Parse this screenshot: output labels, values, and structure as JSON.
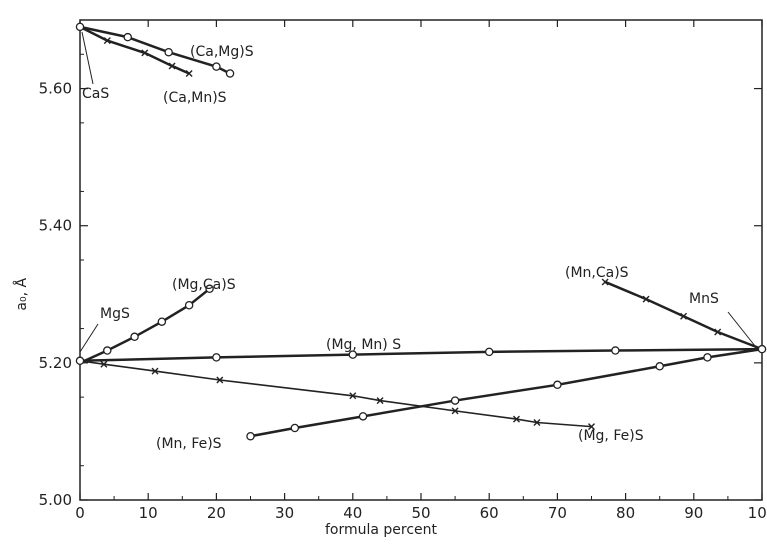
{
  "chart_data": {
    "type": "line",
    "title": "",
    "xlabel": "formula percent",
    "ylabel": "a₀, Å",
    "xlim": [
      0,
      100
    ],
    "ylim": [
      5.0,
      5.7
    ],
    "xticks": [
      "0",
      "10",
      "20",
      "30",
      "40",
      "50",
      "60",
      "70",
      "80",
      "90",
      "100"
    ],
    "yticks": [
      "5.00",
      "5.20",
      "5.40",
      "5.60"
    ],
    "ytick_values": [
      5.0,
      5.2,
      5.4,
      5.6
    ],
    "grid": false,
    "series": [
      {
        "name": "(Ca,Mg)S",
        "marker": "circle",
        "width": 2.5,
        "x": [
          0,
          7,
          13,
          20,
          22
        ],
        "y": [
          5.69,
          5.675,
          5.653,
          5.632,
          5.622
        ]
      },
      {
        "name": "(Ca,Mn)S",
        "marker": "cross",
        "width": 2.5,
        "x": [
          0,
          4,
          9.5,
          13.5,
          16
        ],
        "y": [
          5.69,
          5.67,
          5.652,
          5.633,
          5.622
        ]
      },
      {
        "name": "(Mg,Ca)S",
        "marker": "circle",
        "width": 2.5,
        "x": [
          0,
          4,
          8,
          12,
          16,
          19
        ],
        "y": [
          5.2,
          5.218,
          5.238,
          5.26,
          5.284,
          5.308
        ]
      },
      {
        "name": "(Mg, Mn) S",
        "marker": "circle",
        "width": 2.5,
        "x": [
          0,
          20,
          40,
          60,
          78.5,
          100
        ],
        "y": [
          5.203,
          5.208,
          5.212,
          5.216,
          5.218,
          5.22
        ]
      },
      {
        "name": "(Mn,Ca)S",
        "marker": "cross",
        "width": 2.5,
        "x": [
          77,
          83,
          88.5,
          93.5,
          100
        ],
        "y": [
          5.318,
          5.293,
          5.268,
          5.245,
          5.22
        ]
      },
      {
        "name": "(Mg, Fe)S",
        "marker": "cross",
        "width": 1.6,
        "x": [
          0,
          3.5,
          11,
          20.5,
          40,
          44,
          55,
          64,
          67,
          75
        ],
        "y": [
          5.203,
          5.198,
          5.188,
          5.175,
          5.152,
          5.145,
          5.13,
          5.118,
          5.113,
          5.107
        ]
      },
      {
        "name": "(Mn, Fe)S",
        "marker": "circle",
        "width": 2.5,
        "x": [
          25,
          31.5,
          41.5,
          55,
          70,
          85,
          92,
          100
        ],
        "y": [
          5.093,
          5.105,
          5.122,
          5.145,
          5.168,
          5.195,
          5.208,
          5.22
        ]
      }
    ],
    "end_labels": {
      "cas": "CaS",
      "mgs": "MgS",
      "mns": "MnS"
    }
  }
}
